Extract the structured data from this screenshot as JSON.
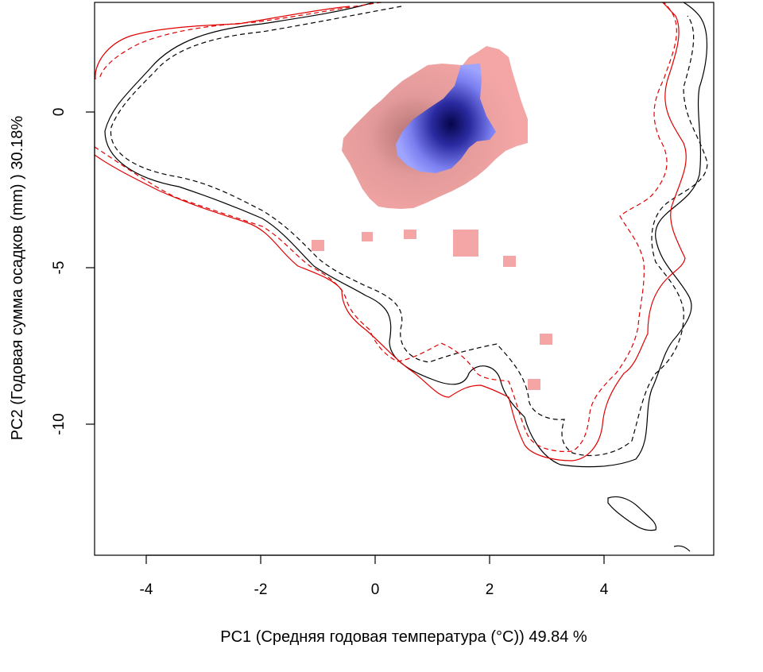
{
  "chart_data": {
    "type": "heatmap",
    "xlabel": "PC1 (Средняя годовая температура (°C)) 49.84 %",
    "ylabel": "PC2 (Годовая сумма осадков  (mm) ) 30.18%",
    "xlim": [
      -4.85,
      5.9
    ],
    "ylim": [
      -14.0,
      3.4
    ],
    "x_ticks": [
      -4,
      -2,
      0,
      2,
      4
    ],
    "y_ticks": [
      0,
      -5,
      -10
    ],
    "grid": false,
    "legend": "none",
    "colors": {
      "niche_pink": "#f4a6a6",
      "niche_pink_dark": "#c98a8a",
      "overlap_blue": "#9fa4ff",
      "core_navy": "#0a0a55",
      "contour_black": "#000000",
      "contour_red": "#e00000"
    },
    "density_surface": {
      "peak": [
        1.1,
        -1.1
      ],
      "pink_extent_x": [
        -0.55,
        2.7
      ],
      "pink_extent_y": [
        -3.0,
        2.1
      ],
      "blue_extent_x": [
        0.4,
        2.1
      ],
      "blue_extent_y": [
        -1.9,
        1.6
      ],
      "patches": [
        {
          "x": -1.0,
          "y": -4.2
        },
        {
          "x": -0.15,
          "y": -4.0
        },
        {
          "x": 0.65,
          "y": -3.9
        },
        {
          "x": 1.6,
          "y": -4.2
        },
        {
          "x": 2.4,
          "y": -4.8
        },
        {
          "x": 3.05,
          "y": -7.35
        },
        {
          "x": 2.8,
          "y": -8.7
        }
      ]
    },
    "series": [
      {
        "color": "black",
        "linestyle": "solid"
      },
      {
        "color": "black",
        "linestyle": "dashed"
      },
      {
        "color": "red",
        "linestyle": "solid"
      },
      {
        "color": "red",
        "linestyle": "dashed"
      }
    ]
  }
}
